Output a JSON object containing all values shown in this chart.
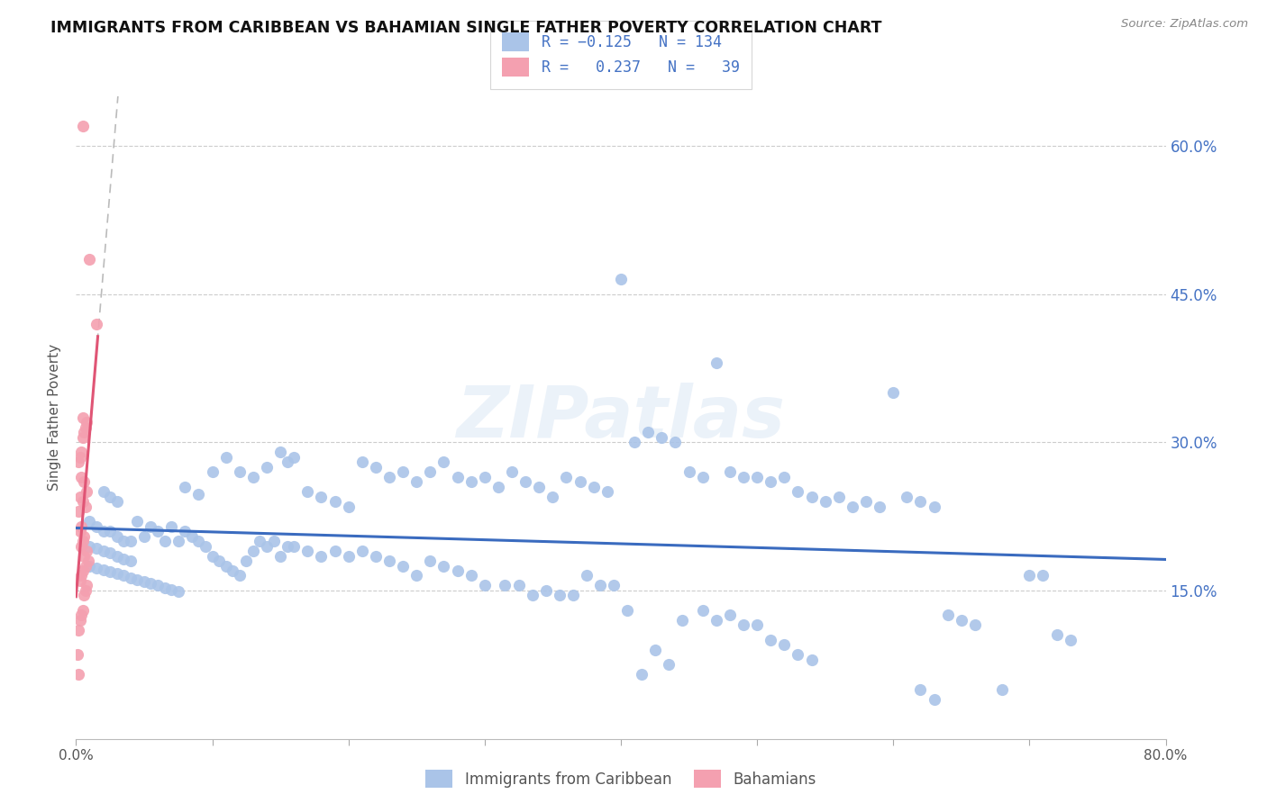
{
  "title": "IMMIGRANTS FROM CARIBBEAN VS BAHAMIAN SINGLE FATHER POVERTY CORRELATION CHART",
  "source": "Source: ZipAtlas.com",
  "ylabel": "Single Father Poverty",
  "xlim": [
    0.0,
    0.8
  ],
  "ylim": [
    0.0,
    0.65
  ],
  "ytick_positions": [
    0.15,
    0.3,
    0.45,
    0.6
  ],
  "ytick_labels": [
    "15.0%",
    "30.0%",
    "45.0%",
    "60.0%"
  ],
  "blue_color": "#aac4e8",
  "blue_line_color": "#3a6bbf",
  "pink_color": "#f4a0b0",
  "pink_line_color": "#e05575",
  "gray_dash_color": "#bbbbbb",
  "watermark": "ZIPatlas",
  "watermark_zip_color": "#dce8f5",
  "watermark_atlas_color": "#dce8f5",
  "blue_scatter": [
    [
      0.02,
      0.25
    ],
    [
      0.025,
      0.245
    ],
    [
      0.03,
      0.24
    ],
    [
      0.01,
      0.22
    ],
    [
      0.015,
      0.215
    ],
    [
      0.02,
      0.21
    ],
    [
      0.025,
      0.21
    ],
    [
      0.03,
      0.205
    ],
    [
      0.035,
      0.2
    ],
    [
      0.01,
      0.195
    ],
    [
      0.015,
      0.193
    ],
    [
      0.02,
      0.19
    ],
    [
      0.025,
      0.188
    ],
    [
      0.03,
      0.185
    ],
    [
      0.035,
      0.182
    ],
    [
      0.04,
      0.18
    ],
    [
      0.01,
      0.175
    ],
    [
      0.015,
      0.173
    ],
    [
      0.02,
      0.171
    ],
    [
      0.025,
      0.169
    ],
    [
      0.03,
      0.167
    ],
    [
      0.035,
      0.165
    ],
    [
      0.04,
      0.163
    ],
    [
      0.045,
      0.161
    ],
    [
      0.05,
      0.159
    ],
    [
      0.055,
      0.157
    ],
    [
      0.06,
      0.155
    ],
    [
      0.065,
      0.153
    ],
    [
      0.07,
      0.151
    ],
    [
      0.075,
      0.149
    ],
    [
      0.08,
      0.255
    ],
    [
      0.09,
      0.247
    ],
    [
      0.1,
      0.27
    ],
    [
      0.11,
      0.285
    ],
    [
      0.12,
      0.27
    ],
    [
      0.13,
      0.265
    ],
    [
      0.14,
      0.275
    ],
    [
      0.15,
      0.29
    ],
    [
      0.155,
      0.28
    ],
    [
      0.16,
      0.285
    ],
    [
      0.17,
      0.25
    ],
    [
      0.18,
      0.245
    ],
    [
      0.19,
      0.24
    ],
    [
      0.2,
      0.235
    ],
    [
      0.21,
      0.28
    ],
    [
      0.22,
      0.275
    ],
    [
      0.23,
      0.265
    ],
    [
      0.24,
      0.27
    ],
    [
      0.25,
      0.26
    ],
    [
      0.26,
      0.27
    ],
    [
      0.27,
      0.28
    ],
    [
      0.28,
      0.265
    ],
    [
      0.29,
      0.26
    ],
    [
      0.3,
      0.265
    ],
    [
      0.31,
      0.255
    ],
    [
      0.32,
      0.27
    ],
    [
      0.33,
      0.26
    ],
    [
      0.34,
      0.255
    ],
    [
      0.35,
      0.245
    ],
    [
      0.36,
      0.265
    ],
    [
      0.37,
      0.26
    ],
    [
      0.38,
      0.255
    ],
    [
      0.39,
      0.25
    ],
    [
      0.4,
      0.465
    ],
    [
      0.41,
      0.3
    ],
    [
      0.42,
      0.31
    ],
    [
      0.43,
      0.305
    ],
    [
      0.44,
      0.3
    ],
    [
      0.45,
      0.27
    ],
    [
      0.46,
      0.265
    ],
    [
      0.47,
      0.38
    ],
    [
      0.48,
      0.27
    ],
    [
      0.49,
      0.265
    ],
    [
      0.5,
      0.265
    ],
    [
      0.51,
      0.26
    ],
    [
      0.52,
      0.265
    ],
    [
      0.53,
      0.25
    ],
    [
      0.54,
      0.245
    ],
    [
      0.55,
      0.24
    ],
    [
      0.56,
      0.245
    ],
    [
      0.57,
      0.235
    ],
    [
      0.58,
      0.24
    ],
    [
      0.59,
      0.235
    ],
    [
      0.6,
      0.35
    ],
    [
      0.61,
      0.245
    ],
    [
      0.62,
      0.24
    ],
    [
      0.63,
      0.235
    ],
    [
      0.64,
      0.125
    ],
    [
      0.65,
      0.12
    ],
    [
      0.66,
      0.115
    ],
    [
      0.7,
      0.165
    ],
    [
      0.71,
      0.165
    ],
    [
      0.72,
      0.105
    ],
    [
      0.73,
      0.1
    ],
    [
      0.04,
      0.2
    ],
    [
      0.045,
      0.22
    ],
    [
      0.05,
      0.205
    ],
    [
      0.055,
      0.215
    ],
    [
      0.06,
      0.21
    ],
    [
      0.065,
      0.2
    ],
    [
      0.07,
      0.215
    ],
    [
      0.075,
      0.2
    ],
    [
      0.08,
      0.21
    ],
    [
      0.085,
      0.205
    ],
    [
      0.09,
      0.2
    ],
    [
      0.095,
      0.195
    ],
    [
      0.1,
      0.185
    ],
    [
      0.105,
      0.18
    ],
    [
      0.11,
      0.175
    ],
    [
      0.115,
      0.17
    ],
    [
      0.12,
      0.165
    ],
    [
      0.125,
      0.18
    ],
    [
      0.13,
      0.19
    ],
    [
      0.135,
      0.2
    ],
    [
      0.14,
      0.195
    ],
    [
      0.145,
      0.2
    ],
    [
      0.15,
      0.185
    ],
    [
      0.155,
      0.195
    ],
    [
      0.16,
      0.195
    ],
    [
      0.17,
      0.19
    ],
    [
      0.18,
      0.185
    ],
    [
      0.19,
      0.19
    ],
    [
      0.2,
      0.185
    ],
    [
      0.21,
      0.19
    ],
    [
      0.22,
      0.185
    ],
    [
      0.23,
      0.18
    ],
    [
      0.24,
      0.175
    ],
    [
      0.25,
      0.165
    ],
    [
      0.26,
      0.18
    ],
    [
      0.27,
      0.175
    ],
    [
      0.28,
      0.17
    ],
    [
      0.29,
      0.165
    ],
    [
      0.3,
      0.155
    ],
    [
      0.315,
      0.155
    ],
    [
      0.325,
      0.155
    ],
    [
      0.335,
      0.145
    ],
    [
      0.345,
      0.15
    ],
    [
      0.355,
      0.145
    ],
    [
      0.365,
      0.145
    ],
    [
      0.375,
      0.165
    ],
    [
      0.385,
      0.155
    ],
    [
      0.395,
      0.155
    ],
    [
      0.405,
      0.13
    ],
    [
      0.415,
      0.065
    ],
    [
      0.425,
      0.09
    ],
    [
      0.435,
      0.075
    ],
    [
      0.445,
      0.12
    ],
    [
      0.46,
      0.13
    ],
    [
      0.47,
      0.12
    ],
    [
      0.48,
      0.125
    ],
    [
      0.49,
      0.115
    ],
    [
      0.5,
      0.115
    ],
    [
      0.51,
      0.1
    ],
    [
      0.52,
      0.095
    ],
    [
      0.53,
      0.085
    ],
    [
      0.54,
      0.08
    ],
    [
      0.62,
      0.05
    ],
    [
      0.63,
      0.04
    ],
    [
      0.68,
      0.05
    ]
  ],
  "pink_scatter": [
    [
      0.005,
      0.62
    ],
    [
      0.01,
      0.485
    ],
    [
      0.015,
      0.42
    ],
    [
      0.005,
      0.325
    ],
    [
      0.008,
      0.32
    ],
    [
      0.007,
      0.315
    ],
    [
      0.006,
      0.31
    ],
    [
      0.005,
      0.305
    ],
    [
      0.004,
      0.29
    ],
    [
      0.003,
      0.285
    ],
    [
      0.002,
      0.28
    ],
    [
      0.004,
      0.265
    ],
    [
      0.006,
      0.26
    ],
    [
      0.008,
      0.25
    ],
    [
      0.003,
      0.245
    ],
    [
      0.005,
      0.24
    ],
    [
      0.007,
      0.235
    ],
    [
      0.002,
      0.23
    ],
    [
      0.004,
      0.215
    ],
    [
      0.003,
      0.21
    ],
    [
      0.006,
      0.205
    ],
    [
      0.005,
      0.2
    ],
    [
      0.004,
      0.195
    ],
    [
      0.008,
      0.19
    ],
    [
      0.006,
      0.185
    ],
    [
      0.009,
      0.18
    ],
    [
      0.007,
      0.175
    ],
    [
      0.005,
      0.17
    ],
    [
      0.004,
      0.165
    ],
    [
      0.003,
      0.16
    ],
    [
      0.008,
      0.155
    ],
    [
      0.007,
      0.15
    ],
    [
      0.006,
      0.145
    ],
    [
      0.005,
      0.13
    ],
    [
      0.004,
      0.125
    ],
    [
      0.003,
      0.12
    ],
    [
      0.002,
      0.11
    ],
    [
      0.001,
      0.085
    ],
    [
      0.002,
      0.065
    ]
  ]
}
